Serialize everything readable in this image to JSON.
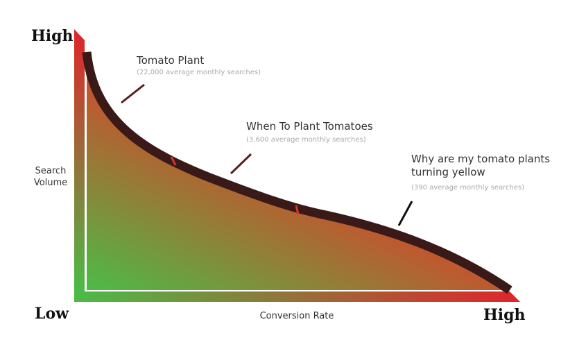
{
  "axes": {
    "y_high": "High",
    "y_title": [
      "Search",
      "Volume"
    ],
    "x_low": "Low",
    "x_high": "High",
    "x_title": "Conversion Rate"
  },
  "annotations": [
    {
      "title": [
        "Tomato Plant"
      ],
      "note": "(22,000 average monthly searches)"
    },
    {
      "title": [
        "When To Plant Tomatoes"
      ],
      "note": "(3,600 average monthly searches)"
    },
    {
      "title": [
        "Why are my tomato plants",
        "turning yellow"
      ],
      "note": "(390 average monthly searches)"
    }
  ]
}
